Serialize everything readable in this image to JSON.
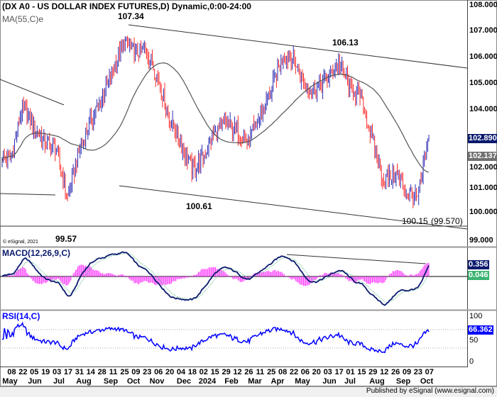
{
  "header": {
    "title": "(DX A0 - US DOLLAR INDEX FUTURES,D) Dynamic,0:00-24:00",
    "ma_label": "MA(55,C)e",
    "copyright": "© eSignal, 2021"
  },
  "footer": {
    "published": "Published by eSignal (www.esignal.com)"
  },
  "colors": {
    "up_bar": "#2a2ab4",
    "down_bar": "#ff2a2a",
    "ma": "#555555",
    "macd": "#0a1a6e",
    "signal": "#3cb371",
    "histogram": "#ff33ff",
    "rsi": "#0000ff",
    "price_box": "#0a1a6e",
    "ma_box": "#707070",
    "macd_box": "#0a1a6e",
    "signal_box": "#3cb371",
    "rsi_box": "#0000ff"
  },
  "chart_data": {
    "type": "line",
    "title": "DX A0 - US DOLLAR INDEX FUTURES, Daily",
    "x_ticks": [
      "08",
      "22",
      "05",
      "19",
      "03",
      "17",
      "31",
      "14",
      "28",
      "11",
      "25",
      "09",
      "23",
      "06",
      "20",
      "04",
      "18",
      "02",
      "15",
      "29",
      "12",
      "26",
      "11",
      "25",
      "08",
      "22",
      "06",
      "20",
      "03",
      "17",
      "01",
      "15",
      "29",
      "12",
      "26",
      "09",
      "23",
      "07"
    ],
    "months": [
      "May",
      "Jun",
      "Jul",
      "Aug",
      "Sep",
      "Oct",
      "Nov",
      "Dec",
      "2024",
      "Feb",
      "Mar",
      "Apr",
      "May",
      "Jun",
      "Jul",
      "Aug",
      "Sep",
      "Oct"
    ],
    "waypoint_closes": [
      102.2,
      104.1,
      103.4,
      102.8,
      102.5,
      100.6,
      102.4,
      103.5,
      104.4,
      105.5,
      106.6,
      106.2,
      106.3,
      105.2,
      103.7,
      102.8,
      101.7,
      102.2,
      103.1,
      103.5,
      103.2,
      102.8,
      103.7,
      104.7,
      106.0,
      106.0,
      104.9,
      104.8,
      105.2,
      105.8,
      104.9,
      104.4,
      102.8,
      101.3,
      101.6,
      100.9,
      100.6,
      102.89
    ],
    "price_axis": {
      "ticks": [
        "108.000",
        "107.000",
        "106.000",
        "105.000",
        "104.000",
        "102.000",
        "101.000",
        "100.000",
        "99.000"
      ],
      "ylim": [
        99,
        108
      ]
    },
    "annotations": [
      "107.34",
      "99.57",
      "100.61",
      "106.13",
      "100.15",
      "(99.570)"
    ],
    "last_price": "102.890",
    "ma55_value": "102.137",
    "macd": {
      "label": "MACD(12,26,9,C)",
      "macd_value": "0.356",
      "signal_value": "0.046"
    },
    "rsi": {
      "label": "RSI(14,C)",
      "value": "66.362",
      "ticks": [
        "100",
        "50",
        "0"
      ],
      "levels": [
        70,
        30
      ]
    }
  }
}
